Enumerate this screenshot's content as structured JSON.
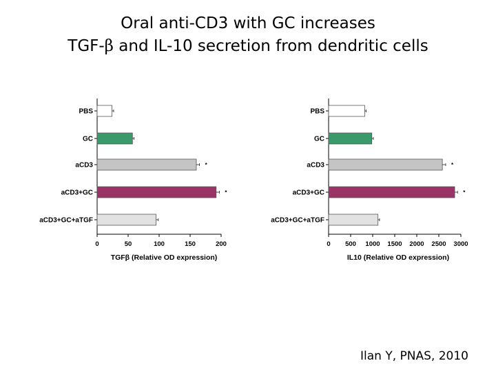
{
  "slide": {
    "title_line1": "Oral anti-CD3 with GC increases",
    "title_line2_pre": "TGF-",
    "title_line2_beta": "β",
    "title_line2_post": " and IL-10 secretion from dendritic cells",
    "citation": "Ilan Y, PNAS, 2010"
  },
  "chart_data": [
    {
      "type": "bar",
      "orientation": "horizontal",
      "categories": [
        "PBS",
        "GC",
        "aCD3",
        "aCD3+GC",
        "aCD3+GC+aTGF"
      ],
      "values": [
        24,
        57,
        160,
        192,
        95
      ],
      "errors": [
        1.5,
        1.5,
        4,
        4,
        2.5
      ],
      "significance": [
        "",
        "",
        "*",
        "*",
        ""
      ],
      "colors": [
        "#ffffff",
        "#3a9a6a",
        "#c4c4c4",
        "#9a3466",
        "#e2e2e2"
      ],
      "xlim": [
        0,
        200
      ],
      "xticks": [
        0,
        50,
        100,
        150,
        200
      ],
      "xlabel": "TGFβ (Relative OD expression)"
    },
    {
      "type": "bar",
      "orientation": "horizontal",
      "categories": [
        "PBS",
        "GC",
        "aCD3",
        "aCD3+GC",
        "aCD3+GC+aTGF"
      ],
      "values": [
        820,
        980,
        2580,
        2860,
        1120
      ],
      "errors": [
        15,
        20,
        60,
        50,
        20
      ],
      "significance": [
        "",
        "",
        "*",
        "*",
        ""
      ],
      "colors": [
        "#ffffff",
        "#3a9a6a",
        "#c4c4c4",
        "#9a3466",
        "#e2e2e2"
      ],
      "xlim": [
        0,
        3000
      ],
      "xticks": [
        0,
        500,
        1000,
        1500,
        2000,
        2500,
        3000
      ],
      "xlabel": "IL10 (Relative OD expression)"
    }
  ]
}
